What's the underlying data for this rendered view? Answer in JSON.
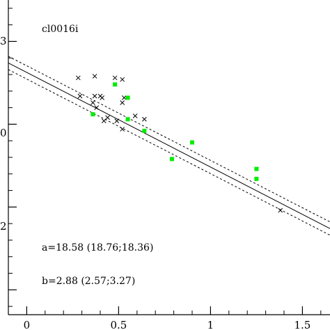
{
  "chart_data": {
    "type": "scatter",
    "title": "",
    "annotation": "cl0016i",
    "fit_a_label": "a=18.58 (18.76;18.36)",
    "fit_b_label": "b=2.88 (2.57;3.27)",
    "xlim": [
      -0.1,
      1.65
    ],
    "ylim": [
      17.35,
      19.25
    ],
    "x_ticks": [
      0,
      0.5,
      1,
      1.5
    ],
    "x_tick_labels": [
      "0",
      "0.5",
      "1",
      "1.5"
    ],
    "grid": false,
    "series": [
      {
        "marker": "cross",
        "color": "#000000",
        "points": [
          [
            0.28,
            18.78
          ],
          [
            0.37,
            18.79
          ],
          [
            0.48,
            18.78
          ],
          [
            0.52,
            18.77
          ],
          [
            0.29,
            18.67
          ],
          [
            0.37,
            18.67
          ],
          [
            0.4,
            18.67
          ],
          [
            0.41,
            18.66
          ],
          [
            0.53,
            18.66
          ],
          [
            0.52,
            18.63
          ],
          [
            0.36,
            18.63
          ],
          [
            0.38,
            18.6
          ],
          [
            0.44,
            18.54
          ],
          [
            0.59,
            18.55
          ],
          [
            0.64,
            18.53
          ],
          [
            0.42,
            18.52
          ],
          [
            0.49,
            18.52
          ],
          [
            0.52,
            18.47
          ],
          [
            1.38,
            17.98
          ]
        ]
      },
      {
        "marker": "square",
        "color": "#00ee00",
        "points": [
          [
            0.48,
            18.74
          ],
          [
            0.55,
            18.66
          ],
          [
            0.36,
            18.56
          ],
          [
            0.55,
            18.53
          ],
          [
            0.64,
            18.46
          ],
          [
            0.9,
            18.39
          ],
          [
            0.79,
            18.29
          ],
          [
            1.25,
            18.23
          ],
          [
            1.25,
            18.17
          ]
        ]
      }
    ],
    "fit_lines": [
      {
        "style": "solid",
        "x": [
          -0.1,
          1.65
        ],
        "y": [
          18.87,
          17.87
        ]
      },
      {
        "style": "dotted",
        "x": [
          -0.1,
          1.65
        ],
        "y": [
          18.91,
          17.91
        ]
      },
      {
        "style": "dotted",
        "x": [
          -0.1,
          1.65
        ],
        "y": [
          18.83,
          17.83
        ]
      }
    ]
  }
}
